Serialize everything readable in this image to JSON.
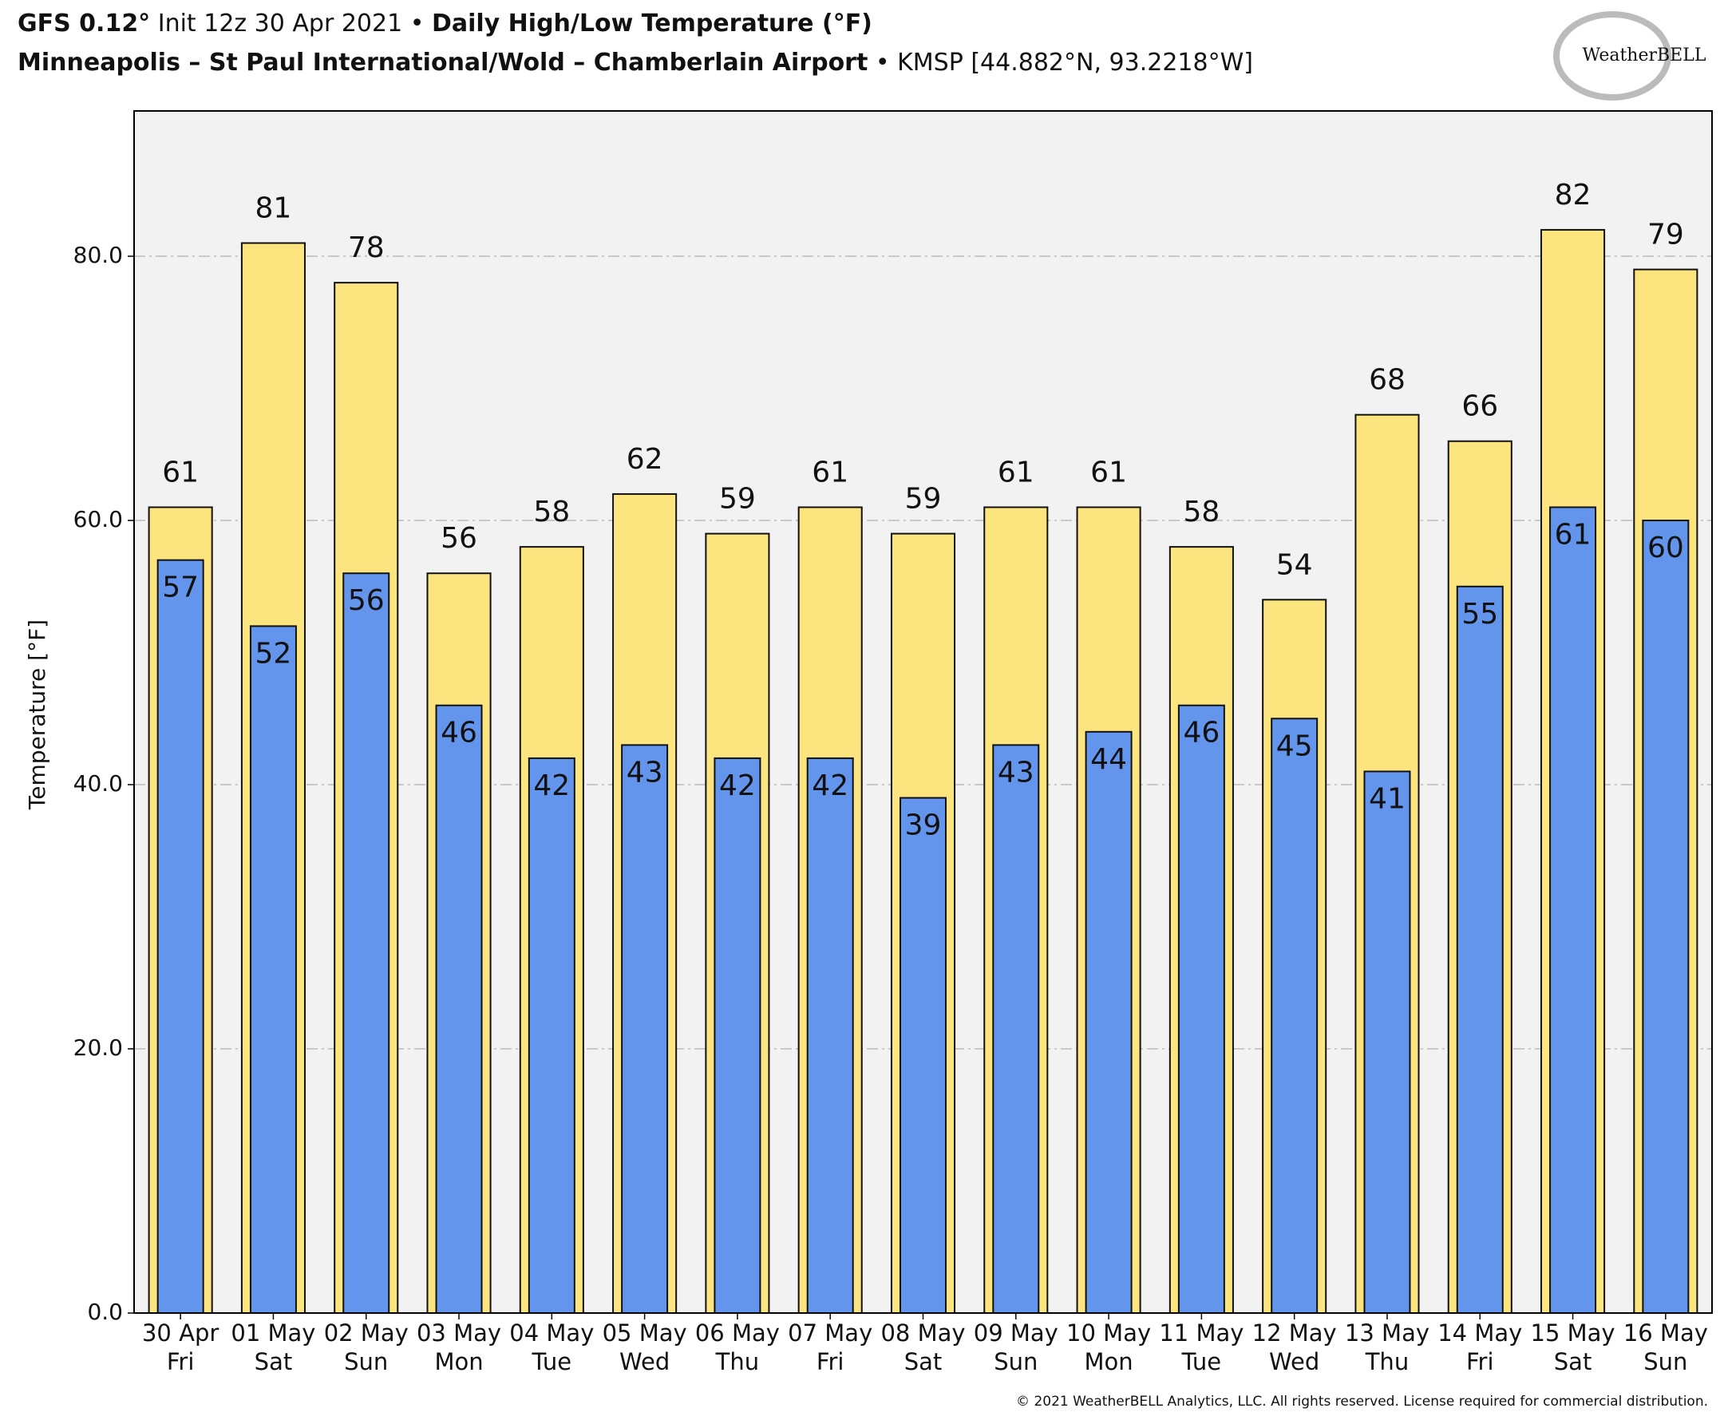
{
  "chart_data": {
    "type": "bar",
    "title": {
      "model": "GFS 0.12°",
      "init": "Init 12z 30 Apr 2021 •",
      "product": "Daily High/Low Temperature (°F)"
    },
    "subtitle": {
      "station": "Minneapolis – St Paul International/Wold – Chamberlain Airport",
      "code": "• KMSP [44.882°N, 93.2218°W]"
    },
    "logo": "WeatherBELL",
    "y_label": "Temperature [°F]",
    "copyright": "© 2021 WeatherBELL Analytics, LLC. All rights reserved. License required for commercial distribution.",
    "categories": [
      "30 Apr",
      "01 May",
      "02 May",
      "03 May",
      "04 May",
      "05 May",
      "06 May",
      "07 May",
      "08 May",
      "09 May",
      "10 May",
      "11 May",
      "12 May",
      "13 May",
      "14 May",
      "15 May",
      "16 May"
    ],
    "weekdays": [
      "Fri",
      "Sat",
      "Sun",
      "Mon",
      "Tue",
      "Wed",
      "Thu",
      "Fri",
      "Sat",
      "Sun",
      "Mon",
      "Tue",
      "Wed",
      "Thu",
      "Fri",
      "Sat",
      "Sun"
    ],
    "series": [
      {
        "color": "#fce57e",
        "values": [
          61,
          81,
          78,
          56,
          58,
          62,
          59,
          61,
          59,
          61,
          61,
          58,
          54,
          68,
          66,
          82,
          79
        ]
      },
      {
        "color": "#6495ed",
        "values": [
          57,
          52,
          56,
          46,
          42,
          43,
          42,
          42,
          39,
          43,
          44,
          46,
          45,
          41,
          55,
          61,
          60
        ]
      }
    ],
    "ylim": [
      0,
      91
    ],
    "yticks": [
      {
        "value": 0,
        "label": "0.0"
      },
      {
        "value": 20,
        "label": "20.0"
      },
      {
        "value": 40,
        "label": "40.0"
      },
      {
        "value": 60,
        "label": "60.0"
      },
      {
        "value": 80,
        "label": "80.0"
      }
    ],
    "grid": true,
    "plot_background": "#f2f2f2"
  }
}
